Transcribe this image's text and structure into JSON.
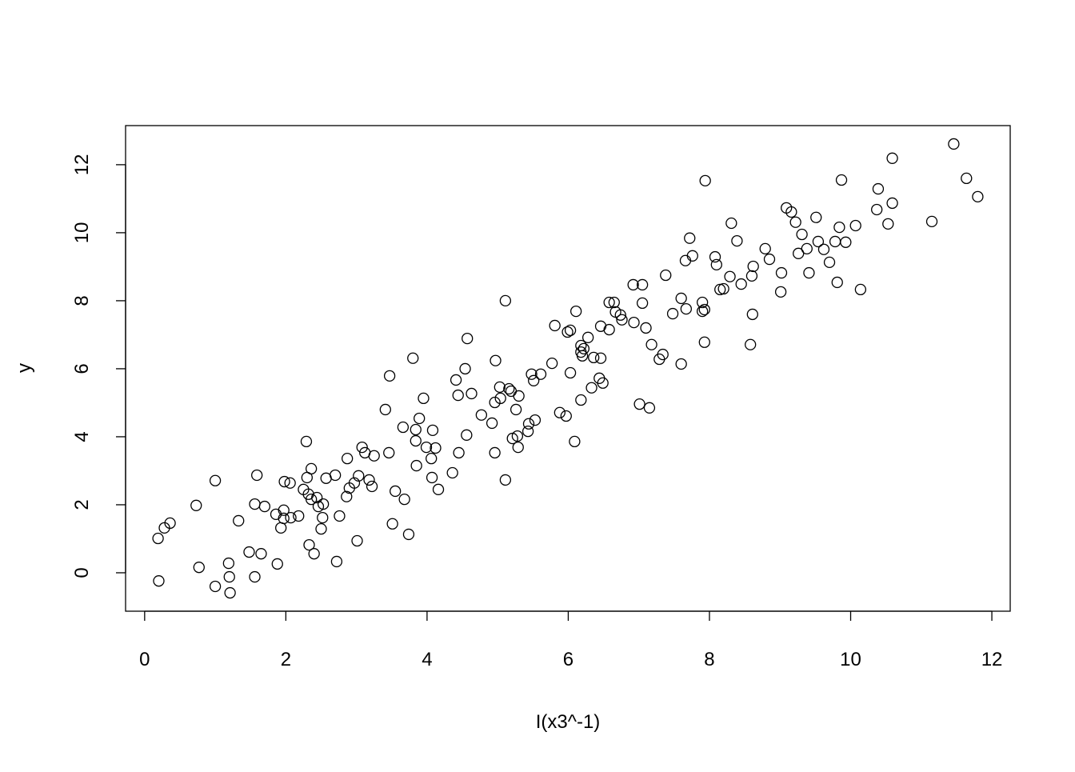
{
  "chart_data": {
    "type": "scatter",
    "title": "",
    "xlabel": "I(x3^-1)",
    "ylabel": "y",
    "xlim": [
      -0.27,
      12.26
    ],
    "ylim": [
      -1.13,
      13.15
    ],
    "xticks": [
      0,
      2,
      4,
      6,
      8,
      10,
      12
    ],
    "yticks": [
      0,
      2,
      4,
      6,
      8,
      10,
      12
    ],
    "grid": false,
    "marker": "open-circle",
    "color": "#000000",
    "points": [
      [
        0.19,
        1.01
      ],
      [
        0.2,
        -0.24
      ],
      [
        0.28,
        1.32
      ],
      [
        0.36,
        1.46
      ],
      [
        0.73,
        1.98
      ],
      [
        0.77,
        0.16
      ],
      [
        1.0,
        2.71
      ],
      [
        1.0,
        -0.4
      ],
      [
        1.19,
        0.28
      ],
      [
        1.2,
        -0.12
      ],
      [
        1.21,
        -0.59
      ],
      [
        1.33,
        1.53
      ],
      [
        1.48,
        0.61
      ],
      [
        1.56,
        2.02
      ],
      [
        1.56,
        -0.12
      ],
      [
        1.59,
        2.87
      ],
      [
        1.65,
        0.56
      ],
      [
        1.7,
        1.95
      ],
      [
        1.86,
        1.72
      ],
      [
        1.88,
        0.26
      ],
      [
        1.93,
        1.32
      ],
      [
        1.97,
        1.84
      ],
      [
        1.98,
        2.68
      ],
      [
        1.97,
        1.6
      ],
      [
        2.06,
        2.64
      ],
      [
        2.07,
        1.62
      ],
      [
        2.18,
        1.67
      ],
      [
        2.25,
        2.45
      ],
      [
        2.29,
        3.86
      ],
      [
        2.3,
        2.8
      ],
      [
        2.32,
        2.31
      ],
      [
        2.33,
        0.82
      ],
      [
        2.36,
        3.06
      ],
      [
        2.36,
        2.16
      ],
      [
        2.4,
        0.56
      ],
      [
        2.44,
        2.21
      ],
      [
        2.46,
        1.95
      ],
      [
        2.5,
        1.29
      ],
      [
        2.53,
        2.02
      ],
      [
        2.52,
        1.62
      ],
      [
        2.57,
        2.78
      ],
      [
        2.7,
        2.87
      ],
      [
        2.72,
        0.33
      ],
      [
        2.76,
        1.67
      ],
      [
        2.86,
        2.24
      ],
      [
        2.87,
        3.36
      ],
      [
        2.9,
        2.49
      ],
      [
        2.97,
        2.64
      ],
      [
        3.01,
        0.94
      ],
      [
        3.03,
        2.85
      ],
      [
        3.08,
        3.69
      ],
      [
        3.12,
        3.53
      ],
      [
        3.18,
        2.73
      ],
      [
        3.22,
        2.54
      ],
      [
        3.25,
        3.44
      ],
      [
        3.41,
        4.8
      ],
      [
        3.46,
        3.53
      ],
      [
        3.47,
        5.79
      ],
      [
        3.51,
        1.44
      ],
      [
        3.55,
        2.4
      ],
      [
        3.66,
        4.28
      ],
      [
        3.68,
        2.16
      ],
      [
        3.74,
        1.13
      ],
      [
        3.8,
        6.31
      ],
      [
        3.84,
        4.21
      ],
      [
        3.84,
        3.88
      ],
      [
        3.85,
        3.15
      ],
      [
        3.89,
        4.54
      ],
      [
        3.95,
        5.13
      ],
      [
        3.99,
        3.69
      ],
      [
        4.07,
        2.8
      ],
      [
        4.06,
        3.36
      ],
      [
        4.08,
        4.19
      ],
      [
        4.12,
        3.67
      ],
      [
        4.16,
        2.45
      ],
      [
        4.36,
        2.94
      ],
      [
        4.41,
        5.67
      ],
      [
        4.45,
        3.53
      ],
      [
        4.44,
        5.22
      ],
      [
        4.54,
        6.0
      ],
      [
        4.56,
        4.05
      ],
      [
        4.57,
        6.89
      ],
      [
        4.63,
        5.27
      ],
      [
        4.77,
        4.64
      ],
      [
        4.92,
        4.4
      ],
      [
        4.96,
        5.01
      ],
      [
        4.96,
        3.53
      ],
      [
        4.97,
        6.24
      ],
      [
        5.03,
        5.46
      ],
      [
        5.04,
        5.13
      ],
      [
        5.11,
        2.73
      ],
      [
        5.11,
        8.0
      ],
      [
        5.16,
        5.41
      ],
      [
        5.19,
        5.34
      ],
      [
        5.21,
        3.95
      ],
      [
        5.26,
        4.8
      ],
      [
        5.28,
        4.02
      ],
      [
        5.29,
        3.69
      ],
      [
        5.3,
        5.2
      ],
      [
        5.43,
        4.16
      ],
      [
        5.44,
        4.38
      ],
      [
        5.48,
        5.84
      ],
      [
        5.51,
        5.65
      ],
      [
        5.53,
        4.49
      ],
      [
        5.61,
        5.84
      ],
      [
        5.77,
        6.16
      ],
      [
        5.81,
        7.27
      ],
      [
        5.88,
        4.71
      ],
      [
        5.97,
        4.61
      ],
      [
        5.99,
        7.08
      ],
      [
        6.03,
        5.88
      ],
      [
        6.03,
        7.13
      ],
      [
        6.09,
        3.86
      ],
      [
        6.11,
        7.69
      ],
      [
        6.18,
        5.08
      ],
      [
        6.18,
        6.68
      ],
      [
        6.18,
        6.49
      ],
      [
        6.2,
        6.38
      ],
      [
        6.22,
        6.59
      ],
      [
        6.28,
        6.92
      ],
      [
        6.33,
        5.44
      ],
      [
        6.36,
        6.33
      ],
      [
        6.44,
        5.72
      ],
      [
        6.46,
        7.25
      ],
      [
        6.46,
        6.31
      ],
      [
        6.49,
        5.58
      ],
      [
        6.58,
        7.15
      ],
      [
        6.58,
        7.95
      ],
      [
        6.65,
        7.95
      ],
      [
        6.67,
        7.67
      ],
      [
        6.74,
        7.58
      ],
      [
        6.76,
        7.44
      ],
      [
        6.92,
        8.47
      ],
      [
        6.93,
        7.36
      ],
      [
        7.01,
        4.96
      ],
      [
        7.05,
        8.47
      ],
      [
        7.05,
        7.93
      ],
      [
        7.1,
        7.2
      ],
      [
        7.15,
        4.85
      ],
      [
        7.18,
        6.71
      ],
      [
        7.29,
        6.28
      ],
      [
        7.34,
        6.42
      ],
      [
        7.38,
        8.75
      ],
      [
        7.48,
        7.62
      ],
      [
        7.6,
        8.07
      ],
      [
        7.6,
        6.14
      ],
      [
        7.66,
        9.18
      ],
      [
        7.67,
        7.76
      ],
      [
        7.72,
        9.84
      ],
      [
        7.76,
        9.32
      ],
      [
        7.9,
        7.95
      ],
      [
        7.9,
        7.69
      ],
      [
        7.93,
        7.74
      ],
      [
        7.93,
        6.78
      ],
      [
        7.94,
        11.53
      ],
      [
        8.08,
        9.29
      ],
      [
        8.1,
        9.06
      ],
      [
        8.15,
        8.33
      ],
      [
        8.2,
        8.35
      ],
      [
        8.29,
        8.71
      ],
      [
        8.31,
        10.28
      ],
      [
        8.39,
        9.76
      ],
      [
        8.45,
        8.49
      ],
      [
        8.58,
        6.71
      ],
      [
        8.6,
        8.73
      ],
      [
        8.61,
        7.6
      ],
      [
        8.62,
        9.01
      ],
      [
        8.79,
        9.53
      ],
      [
        8.85,
        9.22
      ],
      [
        9.01,
        8.26
      ],
      [
        9.02,
        8.82
      ],
      [
        9.09,
        10.73
      ],
      [
        9.16,
        10.61
      ],
      [
        9.22,
        10.31
      ],
      [
        9.26,
        9.39
      ],
      [
        9.31,
        9.95
      ],
      [
        9.38,
        9.53
      ],
      [
        9.41,
        8.82
      ],
      [
        9.51,
        10.45
      ],
      [
        9.54,
        9.74
      ],
      [
        9.62,
        9.51
      ],
      [
        9.7,
        9.13
      ],
      [
        9.78,
        9.74
      ],
      [
        9.81,
        8.54
      ],
      [
        9.84,
        10.16
      ],
      [
        9.87,
        11.55
      ],
      [
        9.93,
        9.72
      ],
      [
        10.07,
        10.21
      ],
      [
        10.14,
        8.33
      ],
      [
        10.37,
        10.68
      ],
      [
        10.39,
        11.29
      ],
      [
        10.53,
        10.26
      ],
      [
        10.59,
        12.19
      ],
      [
        10.59,
        10.87
      ],
      [
        11.15,
        10.33
      ],
      [
        11.46,
        12.61
      ],
      [
        11.64,
        11.6
      ],
      [
        11.8,
        11.06
      ]
    ]
  }
}
